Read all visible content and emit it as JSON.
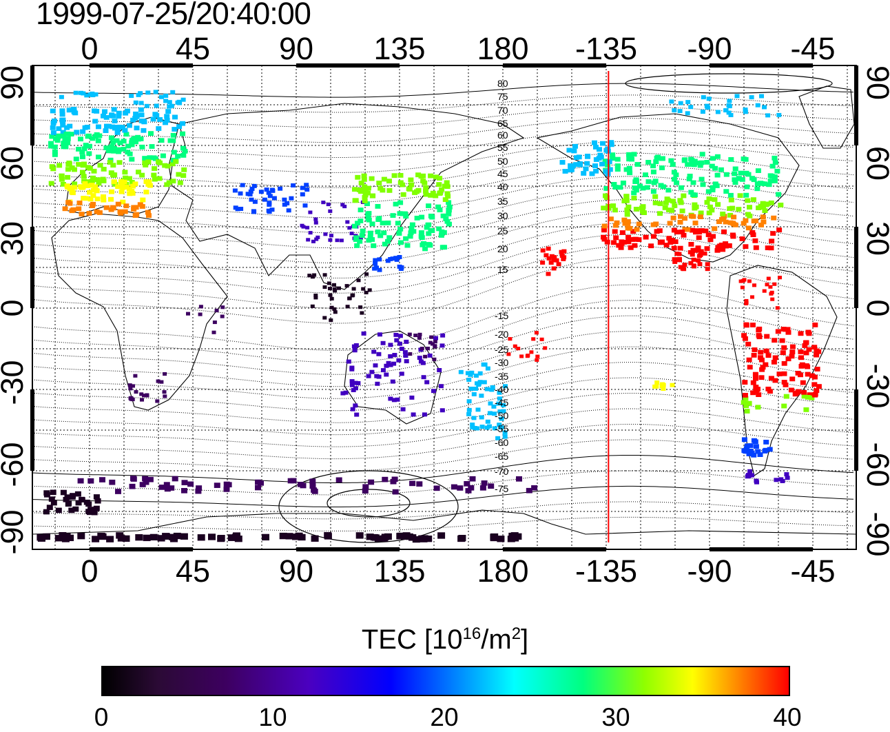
{
  "title": "1999-07-25/20:40:00",
  "axes": {
    "x_ticks": [
      "0",
      "45",
      "90",
      "135",
      "180",
      "-135",
      "-90",
      "-45"
    ],
    "y_ticks": [
      "90",
      "60",
      "30",
      "0",
      "-30",
      "-60",
      "-90"
    ]
  },
  "contour_labels": {
    "north": [
      "80",
      "75",
      "70",
      "65",
      "60",
      "55",
      "50",
      "45",
      "40",
      "35",
      "30",
      "25",
      "20",
      "15"
    ],
    "south": [
      "-15",
      "-20",
      "-25",
      "-30",
      "-35",
      "-40",
      "-45",
      "-50",
      "-55",
      "-60",
      "-65",
      "-70",
      "-75"
    ]
  },
  "colorbar": {
    "label": "TEC  [10",
    "label_exp": "16",
    "label_unit": "/m",
    "label_unit_exp": "2",
    "label_end": "]",
    "ticks": [
      "0",
      "10",
      "20",
      "30",
      "40"
    ],
    "range": [
      0,
      40
    ]
  },
  "meridian_line": {
    "longitude": -134,
    "color": "#ff0000"
  },
  "map_style": {
    "grid": true,
    "grid_style": "dotted",
    "contours": "geomagnetic latitude"
  },
  "tec_colors": {
    "very_low": "#1a0020",
    "low": "#3d0060",
    "low_mid": "#4000c0",
    "mid_low": "#0040ff",
    "mid": "#00c0ff",
    "mid_high": "#00ff80",
    "high": "#80ff00",
    "very_high": "#ffff00",
    "top": "#ff8000",
    "max": "#ff0000"
  }
}
